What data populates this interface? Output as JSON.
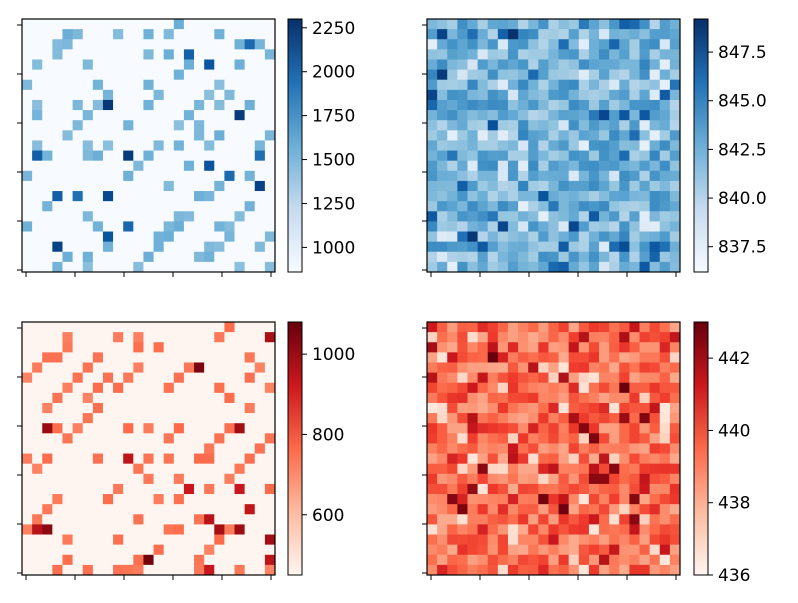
{
  "chart_data": [
    {
      "type": "heatmap",
      "colormap": "Blues",
      "grid": false,
      "colorbar_range": [
        860,
        2300
      ],
      "colorbar_ticks": [
        "1000",
        "1250",
        "1500",
        "1750",
        "2000",
        "2250"
      ],
      "colorbar_tick_values": [
        1000,
        1250,
        1500,
        1750,
        2000,
        2250
      ],
      "title": "",
      "xlabel": "",
      "ylabel": ""
    },
    {
      "type": "heatmap",
      "colormap": "Blues",
      "grid": false,
      "colorbar_range": [
        836.2,
        849.2
      ],
      "colorbar_ticks": [
        "837.5",
        "840.0",
        "842.5",
        "845.0",
        "847.5"
      ],
      "colorbar_tick_values": [
        837.5,
        840.0,
        842.5,
        845.0,
        847.5
      ],
      "title": "",
      "xlabel": "",
      "ylabel": ""
    },
    {
      "type": "heatmap",
      "colormap": "Reds",
      "grid": false,
      "colorbar_range": [
        450,
        1080
      ],
      "colorbar_ticks": [
        "600",
        "800",
        "1000"
      ],
      "colorbar_tick_values": [
        600,
        800,
        1000
      ],
      "title": "",
      "xlabel": "",
      "ylabel": ""
    },
    {
      "type": "heatmap",
      "colormap": "Reds",
      "grid": false,
      "colorbar_range": [
        436,
        443
      ],
      "colorbar_ticks": [
        "436",
        "438",
        "440",
        "442"
      ],
      "colorbar_tick_values": [
        436,
        438,
        440,
        442
      ],
      "title": "",
      "xlabel": "",
      "ylabel": ""
    }
  ]
}
